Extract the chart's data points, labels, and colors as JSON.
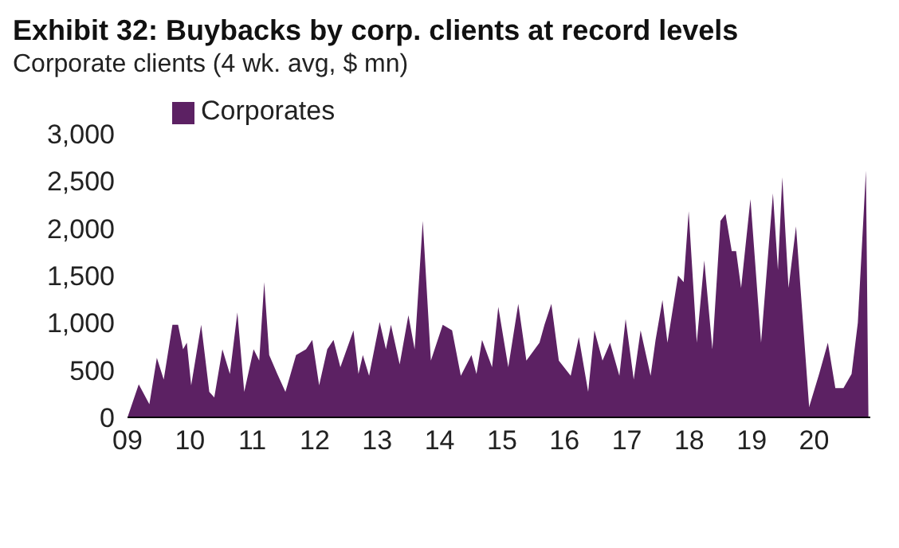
{
  "chart_data": {
    "type": "area",
    "title": "Exhibit 32: Buybacks by corp. clients at record levels",
    "subtitle": "Corporate clients (4 wk. avg, $ mn)",
    "x": [
      2009.0,
      2009.18,
      2009.35,
      2009.47,
      2009.58,
      2009.72,
      2009.81,
      2009.89,
      2009.95,
      2010.02,
      2010.18,
      2010.31,
      2010.39,
      2010.52,
      2010.64,
      2010.76,
      2010.87,
      2011.02,
      2011.11,
      2011.19,
      2011.27,
      2011.4,
      2011.53,
      2011.7,
      2011.86,
      2011.96,
      2012.07,
      2012.2,
      2012.3,
      2012.41,
      2012.62,
      2012.7,
      2012.77,
      2012.87,
      2013.04,
      2013.14,
      2013.22,
      2013.36,
      2013.5,
      2013.6,
      2013.73,
      2013.86,
      2014.05,
      2014.2,
      2014.34,
      2014.51,
      2014.59,
      2014.68,
      2014.84,
      2014.94,
      2015.1,
      2015.26,
      2015.39,
      2015.6,
      2015.68,
      2015.79,
      2015.91,
      2016.1,
      2016.23,
      2016.38,
      2016.48,
      2016.61,
      2016.73,
      2016.88,
      2016.98,
      2017.11,
      2017.22,
      2017.38,
      2017.46,
      2017.57,
      2017.65,
      2017.82,
      2017.91,
      2017.99,
      2018.12,
      2018.24,
      2018.37,
      2018.5,
      2018.58,
      2018.68,
      2018.75,
      2018.83,
      2018.98,
      2019.15,
      2019.34,
      2019.42,
      2019.49,
      2019.59,
      2019.71,
      2019.92,
      2020.08,
      2020.22,
      2020.34,
      2020.47,
      2020.6,
      2020.7,
      2020.83,
      2020.87
    ],
    "series": [
      {
        "name": "Corporates",
        "color": "#5c2163",
        "values": [
          0,
          350,
          140,
          630,
          400,
          980,
          980,
          720,
          790,
          340,
          980,
          270,
          210,
          720,
          460,
          1110,
          270,
          720,
          600,
          1430,
          660,
          460,
          270,
          660,
          720,
          820,
          340,
          720,
          820,
          530,
          920,
          460,
          660,
          440,
          1010,
          720,
          980,
          560,
          1080,
          720,
          2080,
          600,
          980,
          920,
          440,
          660,
          460,
          820,
          530,
          1170,
          530,
          1200,
          600,
          790,
          980,
          1200,
          600,
          440,
          850,
          270,
          920,
          600,
          790,
          440,
          1040,
          400,
          920,
          440,
          820,
          1240,
          790,
          1500,
          1430,
          2180,
          790,
          1660,
          720,
          2080,
          2150,
          1760,
          1760,
          1370,
          2310,
          790,
          2370,
          1560,
          2540,
          1370,
          2020,
          110,
          460,
          790,
          310,
          310,
          460,
          1000,
          2610,
          0
        ]
      }
    ],
    "xlim": [
      2009,
      2020.9
    ],
    "xticks": [
      {
        "value": 2009,
        "label": "09"
      },
      {
        "value": 2010,
        "label": "10"
      },
      {
        "value": 2011,
        "label": "11"
      },
      {
        "value": 2012,
        "label": "12"
      },
      {
        "value": 2013,
        "label": "13"
      },
      {
        "value": 2014,
        "label": "14"
      },
      {
        "value": 2015,
        "label": "15"
      },
      {
        "value": 2016,
        "label": "16"
      },
      {
        "value": 2017,
        "label": "17"
      },
      {
        "value": 2018,
        "label": "18"
      },
      {
        "value": 2019,
        "label": "19"
      },
      {
        "value": 2020,
        "label": "20"
      }
    ],
    "ylim": [
      0,
      3000
    ],
    "yticks": [
      {
        "value": 0,
        "label": "0"
      },
      {
        "value": 500,
        "label": "500"
      },
      {
        "value": 1000,
        "label": "1,000"
      },
      {
        "value": 1500,
        "label": "1,500"
      },
      {
        "value": 2000,
        "label": "2,000"
      },
      {
        "value": 2500,
        "label": "2,500"
      },
      {
        "value": 3000,
        "label": "3,000"
      }
    ],
    "grid": false,
    "legend": "top left"
  }
}
